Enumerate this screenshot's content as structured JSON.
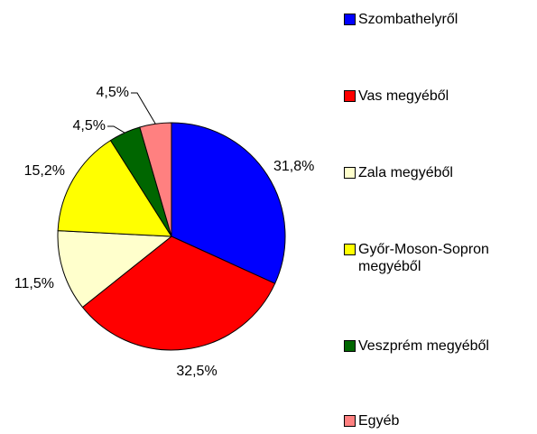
{
  "chart_data": {
    "type": "pie",
    "categories": [
      "Szombathelyről",
      "Vas megyéből",
      "Zala megyéből",
      "Győr-Moson-Sopron megyéből",
      "Veszprém megyéből",
      "Egyéb"
    ],
    "values": [
      31.8,
      32.5,
      11.5,
      15.2,
      4.5,
      4.5
    ],
    "value_labels": [
      "31,8%",
      "32,5%",
      "11,5%",
      "15,2%",
      "4,5%",
      "4,5%"
    ],
    "colors": [
      "#0000ff",
      "#ff0000",
      "#ffffcc",
      "#ffff00",
      "#006600",
      "#ff8080"
    ],
    "legend": "right"
  }
}
